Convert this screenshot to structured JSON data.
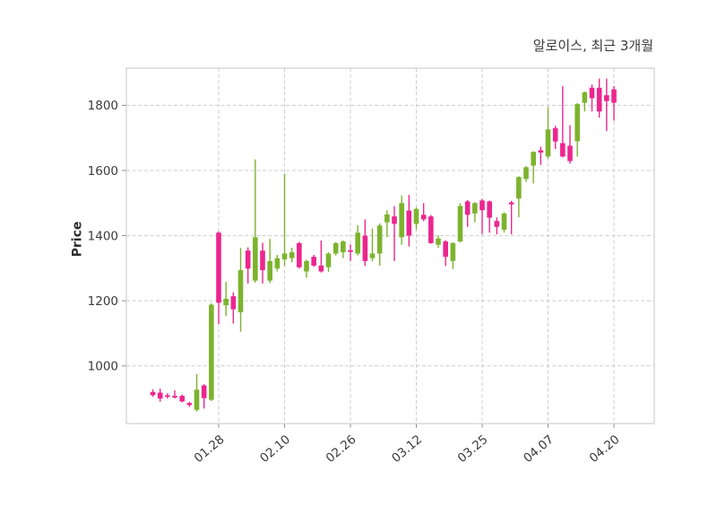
{
  "chart_data": {
    "type": "candlestick",
    "title": "알로이스, 최근 3개월",
    "series_name": "알로이스",
    "ylabel": "Price",
    "xlabel": "",
    "grid": true,
    "legend": false,
    "y_ticks": [
      1000,
      1200,
      1400,
      1600,
      1800
    ],
    "ylim": [
      823,
      1914
    ],
    "x_tick_labels": [
      "01.28",
      "02.10",
      "02.26",
      "03.12",
      "03.25",
      "04.07",
      "04.20"
    ],
    "x_tick_indices": [
      9,
      18,
      27,
      36,
      45,
      54,
      63
    ],
    "colors": {
      "up": "#7CB32E",
      "down": "#EC268F",
      "grid": "#CCCCCC",
      "spine": "#CFCFCF",
      "tick": "#8A8A8A",
      "text": "#3A3A3A"
    },
    "ohlc": [
      [
        920,
        928,
        905,
        910
      ],
      [
        918,
        930,
        890,
        900
      ],
      [
        910,
        916,
        900,
        905
      ],
      [
        908,
        925,
        900,
        903
      ],
      [
        908,
        912,
        888,
        891
      ],
      [
        886,
        890,
        874,
        880
      ],
      [
        865,
        975,
        860,
        927
      ],
      [
        940,
        944,
        869,
        901
      ],
      [
        896,
        1192,
        892,
        1188
      ],
      [
        1409,
        1413,
        1129,
        1194
      ],
      [
        1186,
        1258,
        1153,
        1206
      ],
      [
        1214,
        1226,
        1130,
        1174
      ],
      [
        1165,
        1362,
        1105,
        1294
      ],
      [
        1354,
        1364,
        1253,
        1299
      ],
      [
        1262,
        1634,
        1256,
        1395
      ],
      [
        1354,
        1378,
        1253,
        1294
      ],
      [
        1262,
        1390,
        1254,
        1322
      ],
      [
        1299,
        1341,
        1290,
        1331
      ],
      [
        1327,
        1590,
        1307,
        1345
      ],
      [
        1331,
        1363,
        1318,
        1349
      ],
      [
        1377,
        1381,
        1299,
        1303
      ],
      [
        1290,
        1326,
        1271,
        1322
      ],
      [
        1335,
        1341,
        1304,
        1308
      ],
      [
        1308,
        1385,
        1287,
        1290
      ],
      [
        1303,
        1349,
        1289,
        1345
      ],
      [
        1345,
        1380,
        1339,
        1377
      ],
      [
        1349,
        1385,
        1331,
        1382
      ],
      [
        1355,
        1373,
        1322,
        1350
      ],
      [
        1345,
        1432,
        1339,
        1409
      ],
      [
        1400,
        1450,
        1307,
        1322
      ],
      [
        1331,
        1422,
        1321,
        1345
      ],
      [
        1345,
        1437,
        1308,
        1431
      ],
      [
        1441,
        1478,
        1395,
        1465
      ],
      [
        1459,
        1491,
        1322,
        1436
      ],
      [
        1395,
        1523,
        1372,
        1500
      ],
      [
        1477,
        1525,
        1367,
        1400
      ],
      [
        1436,
        1486,
        1418,
        1482
      ],
      [
        1464,
        1500,
        1444,
        1450
      ],
      [
        1459,
        1463,
        1375,
        1377
      ],
      [
        1372,
        1401,
        1362,
        1391
      ],
      [
        1382,
        1386,
        1307,
        1335
      ],
      [
        1322,
        1380,
        1298,
        1377
      ],
      [
        1382,
        1500,
        1379,
        1491
      ],
      [
        1505,
        1509,
        1427,
        1464
      ],
      [
        1468,
        1503,
        1441,
        1500
      ],
      [
        1508,
        1513,
        1405,
        1478
      ],
      [
        1505,
        1508,
        1409,
        1455
      ],
      [
        1445,
        1456,
        1404,
        1427
      ],
      [
        1418,
        1471,
        1409,
        1468
      ],
      [
        1502,
        1507,
        1404,
        1496
      ],
      [
        1514,
        1582,
        1456,
        1580
      ],
      [
        1574,
        1613,
        1565,
        1610
      ],
      [
        1615,
        1659,
        1560,
        1657
      ],
      [
        1662,
        1673,
        1617,
        1655
      ],
      [
        1643,
        1794,
        1636,
        1726
      ],
      [
        1730,
        1737,
        1666,
        1689
      ],
      [
        1684,
        1859,
        1640,
        1643
      ],
      [
        1676,
        1739,
        1621,
        1629
      ],
      [
        1690,
        1807,
        1643,
        1804
      ],
      [
        1808,
        1843,
        1781,
        1840
      ],
      [
        1854,
        1864,
        1781,
        1822
      ],
      [
        1854,
        1882,
        1762,
        1781
      ],
      [
        1831,
        1882,
        1721,
        1813
      ],
      [
        1849,
        1859,
        1753,
        1808
      ]
    ]
  }
}
